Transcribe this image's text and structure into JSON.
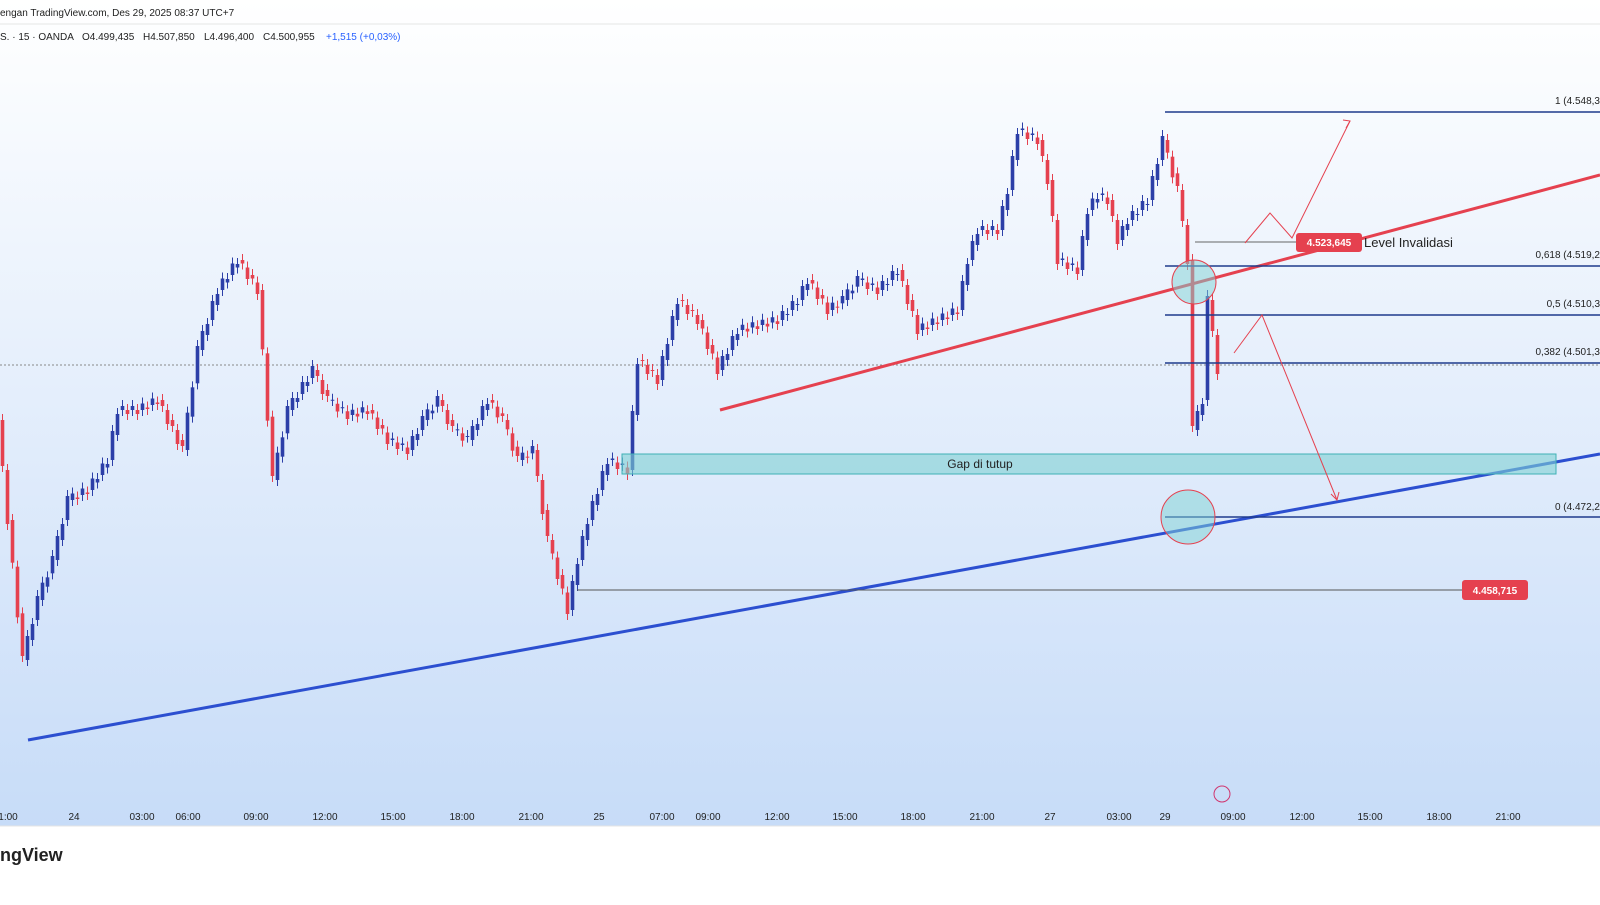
{
  "header": {
    "source": "engan TradingView.com, Des 29, 2025 08:37 UTC+7",
    "symbol": "S. · 15 · OANDA",
    "open": "O4.499,435",
    "high": "H4.507,850",
    "low": "L4.496,400",
    "close": "C4.500,955",
    "change": "+1,515 (+0,03%)"
  },
  "fib_levels": [
    "1 (4.548,3",
    "0,618 (4.519,2",
    "0,5 (4.510,3",
    "0,382 (4.501,3",
    "0 (4.472,2"
  ],
  "annotations": {
    "invalidation_price": "4.523,645",
    "invalidation_text": "Level Invalidasi",
    "gap": "Gap di tutup",
    "support_price": "4.458,715"
  },
  "x_axis": [
    "1:00",
    "24",
    "03:00",
    "06:00",
    "09:00",
    "12:00",
    "15:00",
    "18:00",
    "21:00",
    "25",
    "07:00",
    "09:00",
    "12:00",
    "15:00",
    "18:00",
    "21:00",
    "27",
    "03:00",
    "29",
    "09:00",
    "12:00",
    "15:00",
    "18:00",
    "21:00"
  ],
  "logo": "ngView"
}
